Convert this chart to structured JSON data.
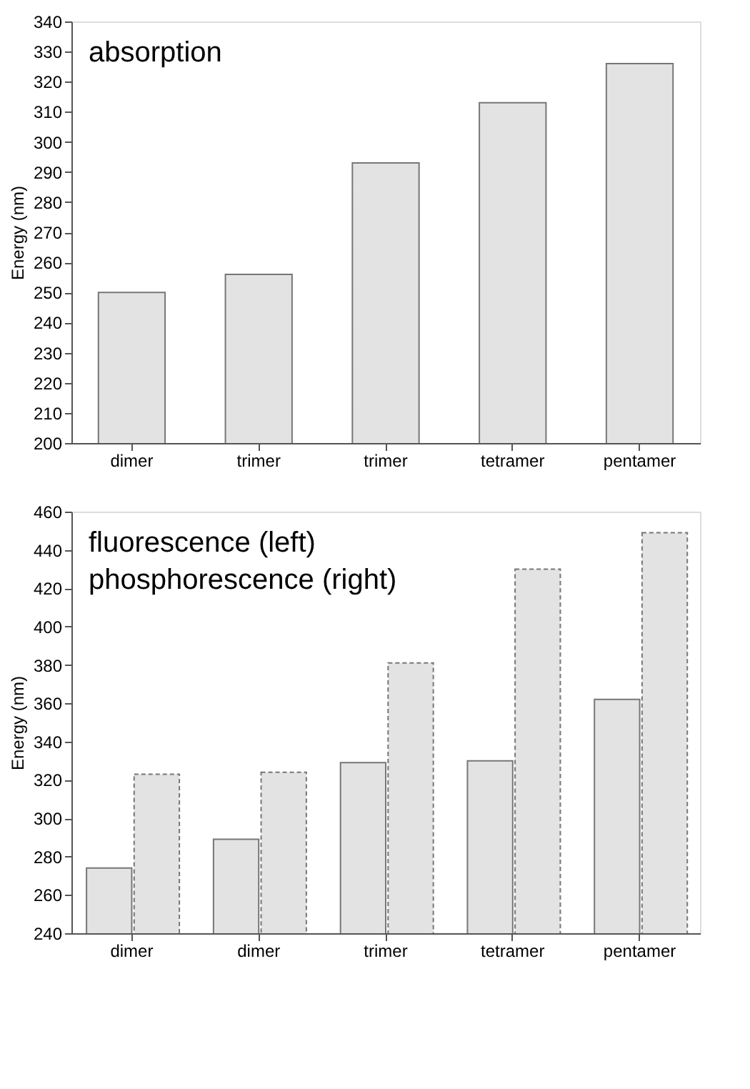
{
  "chart_data": [
    {
      "type": "bar",
      "ylabel": "Energy (nm)",
      "annotations": [
        "absorption"
      ],
      "categories": [
        "dimer",
        "trimer",
        "trimer",
        "tetramer",
        "pentamer"
      ],
      "series": [
        {
          "color": "#e3e3e3",
          "line_style": "solid",
          "values": [
            250,
            256,
            293,
            313,
            326
          ]
        }
      ],
      "ylim": [
        200,
        340
      ],
      "yticks": [
        200,
        210,
        220,
        230,
        240,
        250,
        260,
        270,
        280,
        290,
        300,
        310,
        320,
        330,
        340
      ],
      "grid": false
    },
    {
      "type": "bar",
      "ylabel": "Energy (nm)",
      "annotations": [
        "fluorescence (left)",
        "phosphorescence (right)"
      ],
      "categories": [
        "dimer",
        "dimer",
        "trimer",
        "tetramer",
        "pentamer"
      ],
      "series": [
        {
          "color": "#e3e3e3",
          "line_style": "solid",
          "values": [
            274,
            289,
            329,
            330,
            362
          ]
        },
        {
          "color": "#e3e3e3",
          "line_style": "dashed",
          "values": [
            323,
            324,
            381,
            430,
            449
          ]
        }
      ],
      "ylim": [
        240,
        460
      ],
      "yticks": [
        240,
        260,
        280,
        300,
        320,
        340,
        360,
        380,
        400,
        420,
        440,
        460
      ],
      "grid": false
    }
  ]
}
